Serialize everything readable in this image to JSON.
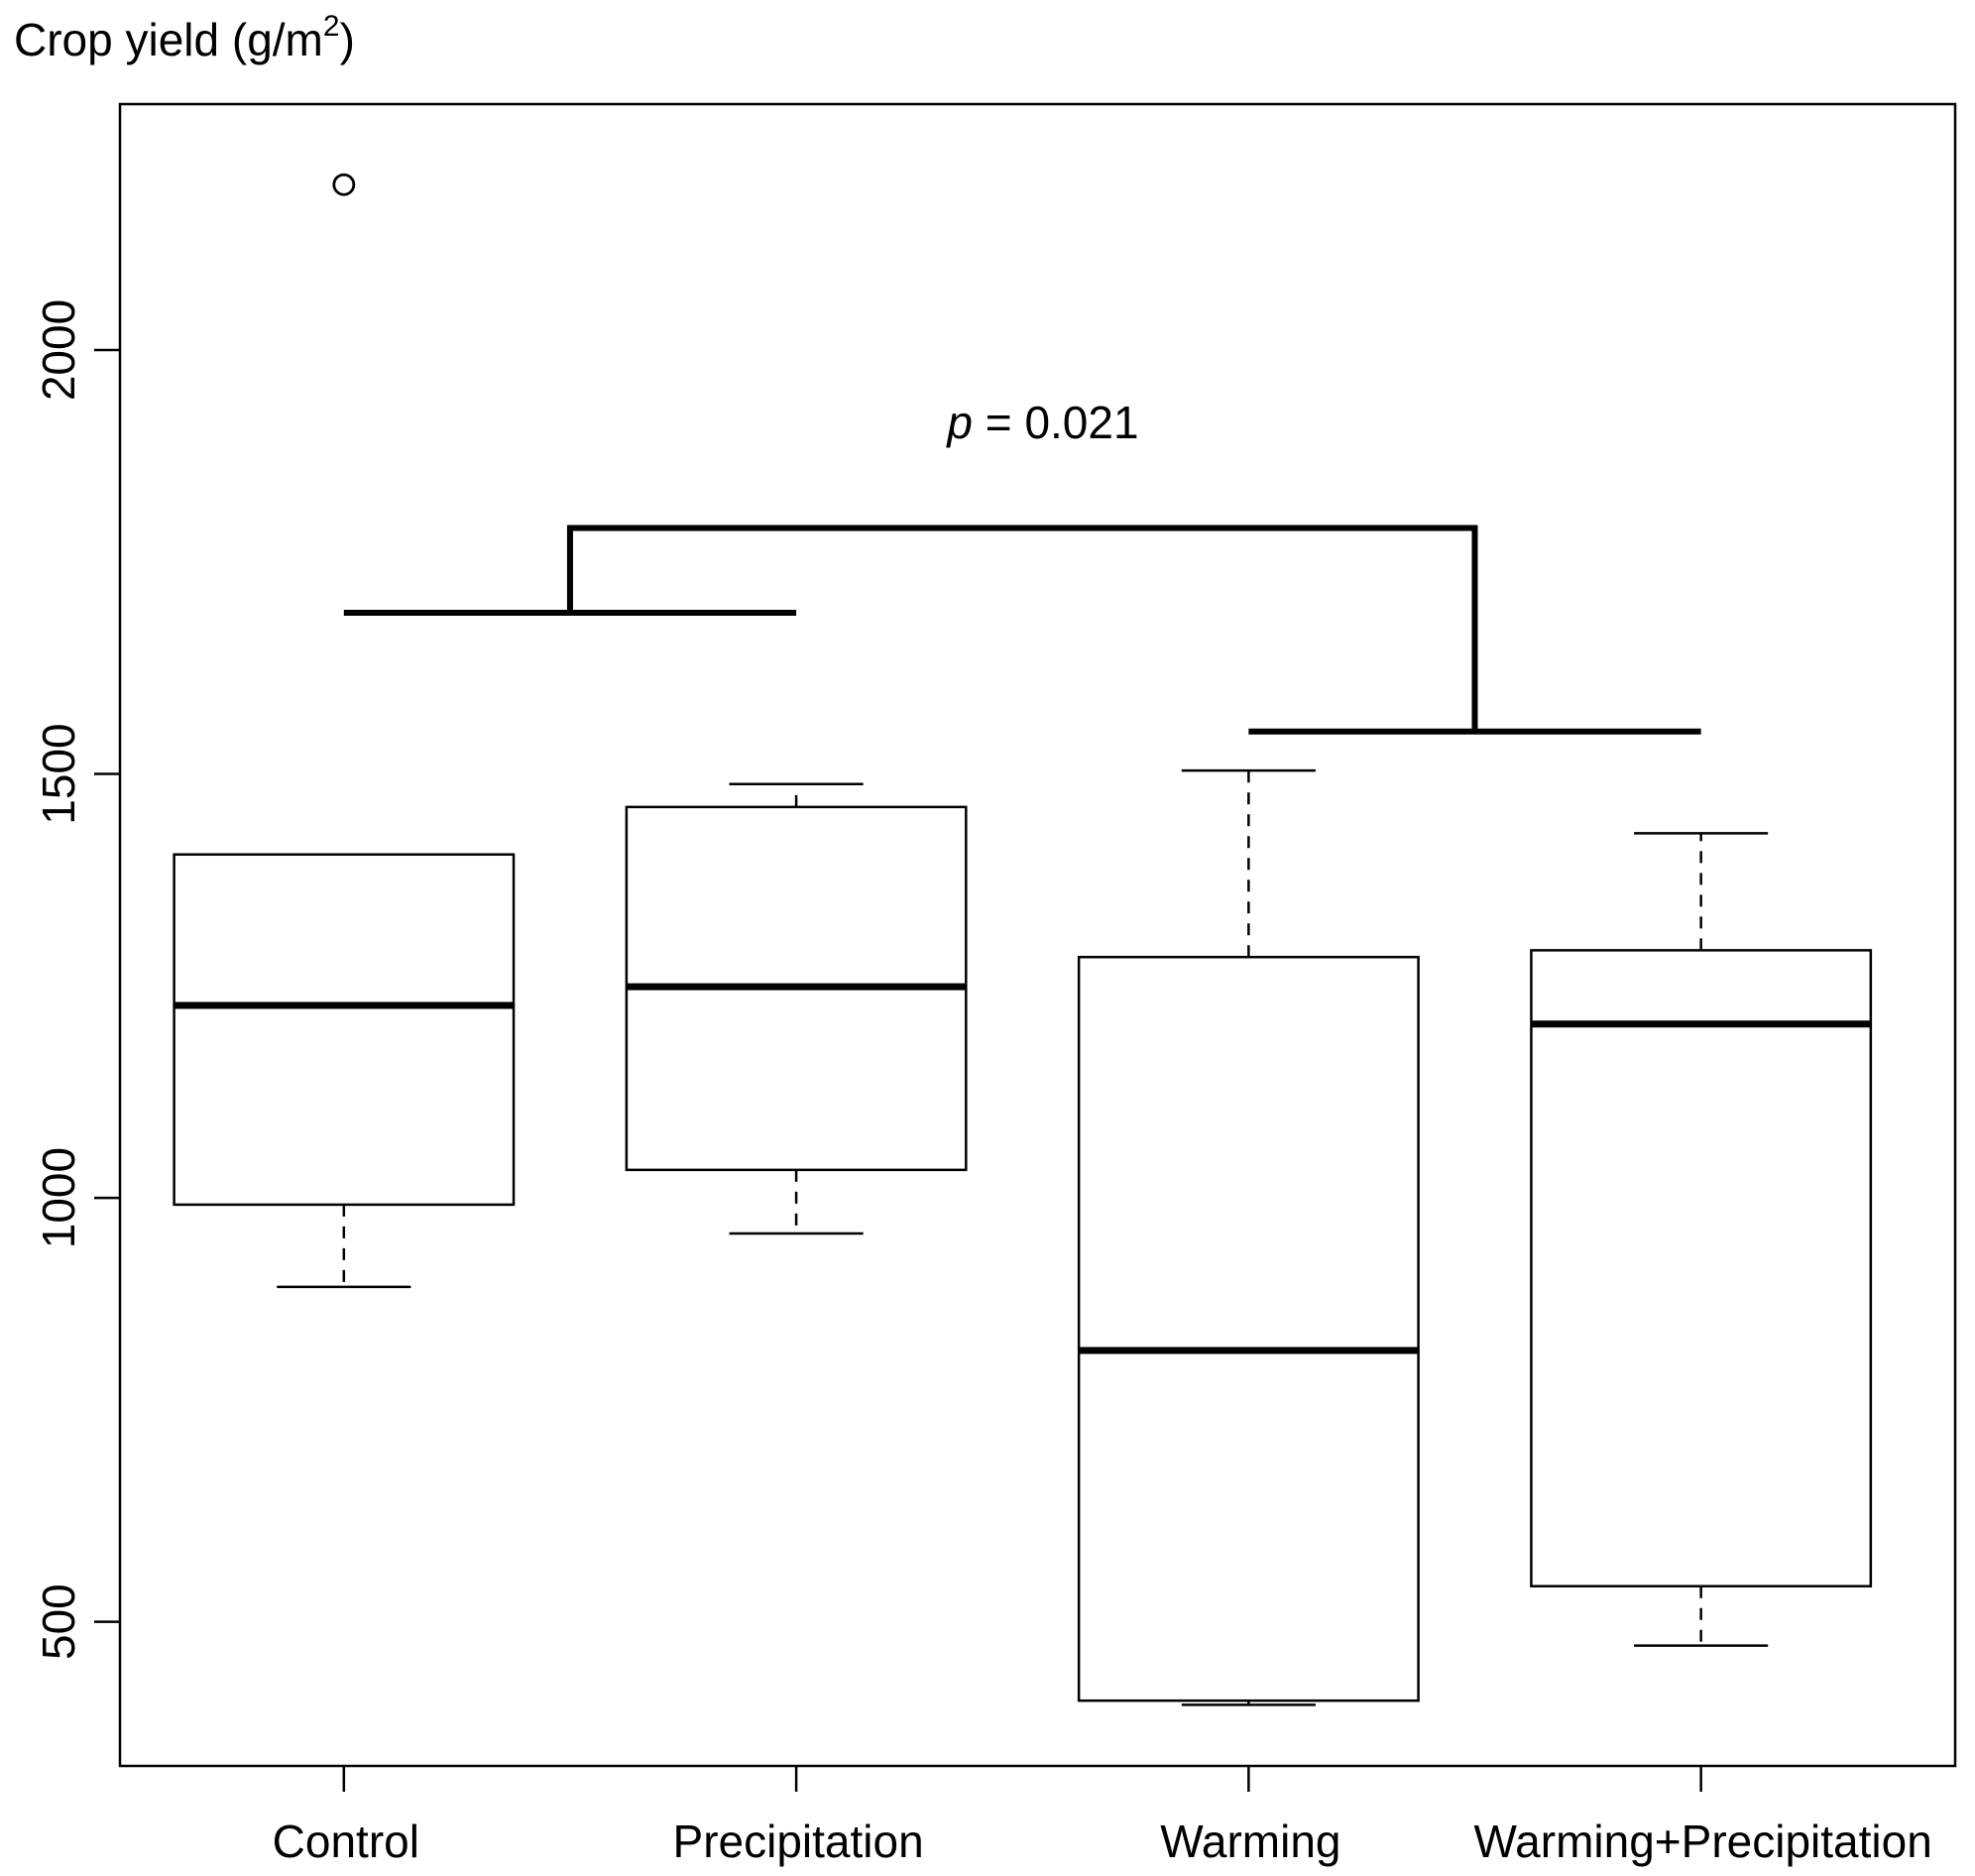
{
  "chart_data": {
    "type": "boxplot",
    "ylabel": "Crop yield (g/m",
    "ylabel_sup": "2",
    "ylabel_close": ")",
    "ylim": [
      330,
      2290
    ],
    "yticks": [
      500,
      1000,
      1500,
      2000
    ],
    "yticklabels": [
      "500",
      "1000",
      "1500",
      "2000"
    ],
    "grid": false,
    "categories": [
      "Control",
      "Precipitation",
      "Warming",
      "Warming+Precipitation"
    ],
    "boxes": [
      {
        "whisker_low": 895,
        "q1": 992,
        "median": 1227,
        "q3": 1405,
        "whisker_high": 1405,
        "outliers": [
          2195
        ]
      },
      {
        "whisker_low": 958,
        "q1": 1033,
        "median": 1249,
        "q3": 1461,
        "whisker_high": 1488,
        "outliers": []
      },
      {
        "whisker_low": 402,
        "q1": 407,
        "median": 820,
        "q3": 1284,
        "whisker_high": 1504,
        "outliers": []
      },
      {
        "whisker_low": 472,
        "q1": 542,
        "median": 1205,
        "q3": 1292,
        "whisker_high": 1430,
        "outliers": []
      }
    ],
    "annotation": {
      "p_symbol": "p",
      "p_value_text": " = 0.021",
      "left_group": [
        0,
        1
      ],
      "left_group_level": 1690,
      "right_group": [
        2,
        3
      ],
      "right_group_level": 1550,
      "top_level": 1790
    }
  }
}
